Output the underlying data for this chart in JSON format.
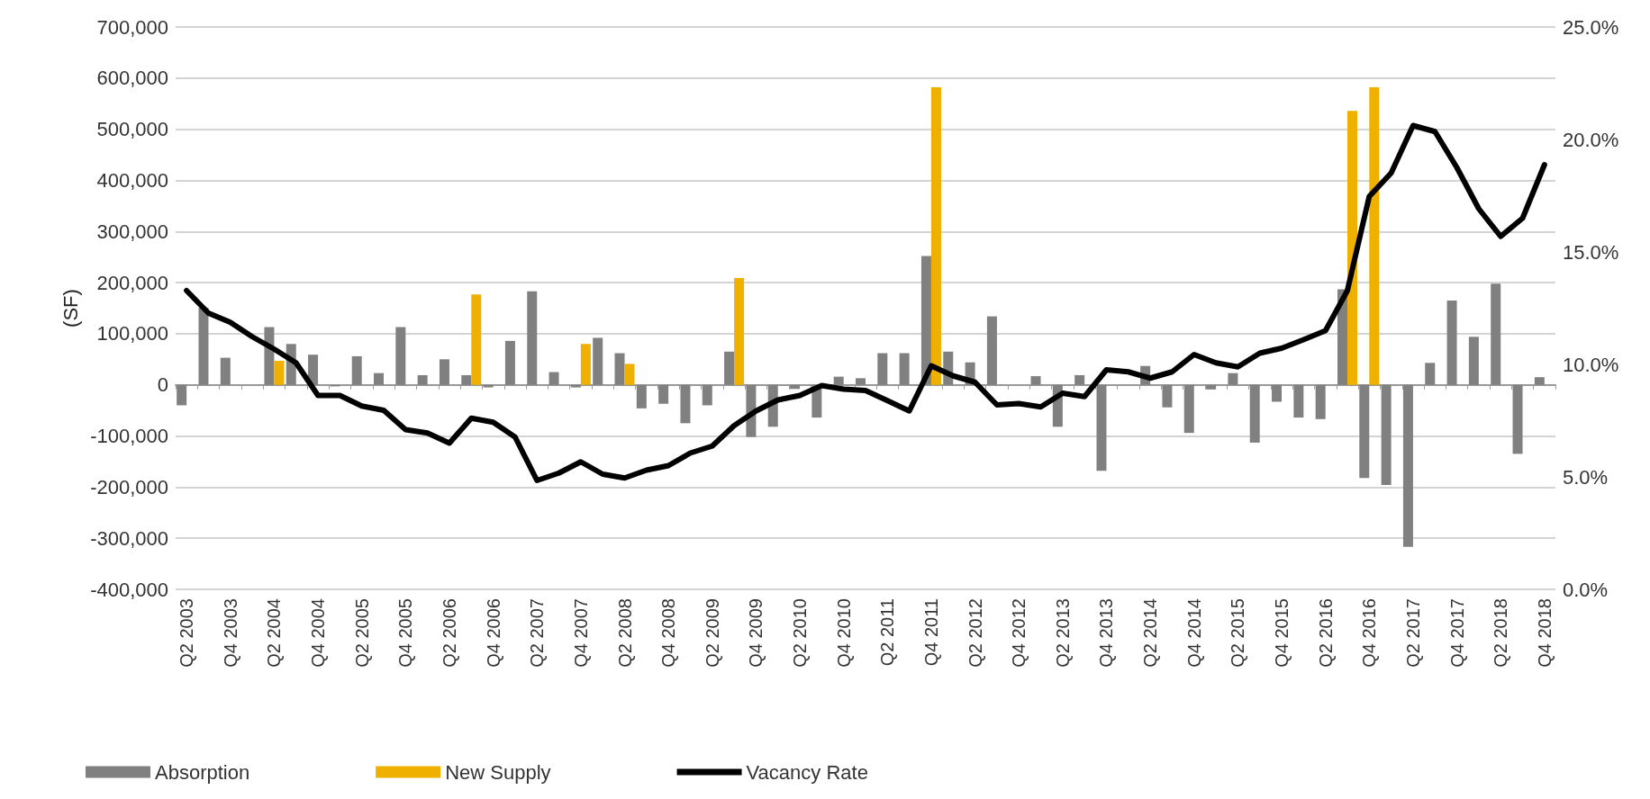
{
  "chart_data": {
    "type": "bar",
    "ylabel": "(SF)",
    "categories": [
      "Q2 2003",
      null,
      "Q4 2003",
      null,
      "Q2 2004",
      null,
      "Q4 2004",
      null,
      "Q2 2005",
      null,
      "Q4 2005",
      null,
      "Q2 2006",
      null,
      "Q4 2006",
      null,
      "Q2 2007",
      null,
      "Q4 2007",
      null,
      "Q2 2008",
      null,
      "Q4 2008",
      null,
      "Q2 2009",
      null,
      "Q4 2009",
      null,
      "Q2 2010",
      null,
      "Q4 2010",
      null,
      "Q2 2011",
      null,
      "Q4 2011",
      null,
      "Q2 2012",
      null,
      "Q4 2012",
      null,
      "Q2 2013",
      null,
      "Q4 2013",
      null,
      "Q2 2014",
      null,
      "Q4 2014",
      null,
      "Q2 2015",
      null,
      "Q4 2015",
      null,
      "Q2 2016",
      null,
      "Q4 2016",
      null,
      "Q2 2017",
      null,
      "Q4 2017",
      null,
      "Q2 2018",
      null,
      "Q4 2018"
    ],
    "series": [
      {
        "name": "Absorption",
        "color": "#808080",
        "values": [
          -40000,
          151000,
          53000,
          0,
          113000,
          80000,
          59000,
          -3000,
          56000,
          23000,
          113000,
          19000,
          50000,
          19000,
          -5000,
          86000,
          183000,
          25000,
          -5000,
          92000,
          62000,
          -46000,
          -37000,
          -75000,
          -40000,
          65000,
          -102000,
          -82000,
          -8000,
          -64000,
          16000,
          13000,
          62000,
          62000,
          252000,
          65000,
          44000,
          134000,
          0,
          17000,
          -82000,
          19000,
          -168000,
          0,
          37000,
          -44000,
          -94000,
          -9000,
          23000,
          -113000,
          -33000,
          -64000,
          -67000,
          187000,
          -182000,
          -196000,
          -317000,
          43000,
          165000,
          94000,
          198000,
          -135000,
          15000
        ]
      },
      {
        "name": "New Supply",
        "color": "#f0b000",
        "values": [
          0,
          0,
          0,
          0,
          47000,
          0,
          0,
          0,
          0,
          0,
          0,
          0,
          0,
          177000,
          0,
          0,
          0,
          0,
          80000,
          0,
          41000,
          0,
          0,
          0,
          0,
          209000,
          0,
          0,
          0,
          0,
          0,
          0,
          0,
          0,
          582000,
          0,
          0,
          0,
          0,
          0,
          0,
          0,
          0,
          0,
          0,
          0,
          0,
          0,
          0,
          0,
          0,
          0,
          0,
          536000,
          582000,
          0,
          0,
          0,
          0,
          0,
          0,
          0,
          0
        ]
      },
      {
        "name": "Vacancy Rate",
        "type": "line",
        "axis": "y2",
        "color": "#000000",
        "values": [
          13.28,
          12.28,
          11.87,
          11.23,
          10.68,
          10.07,
          8.62,
          8.62,
          8.15,
          7.96,
          7.1,
          6.95,
          6.5,
          7.61,
          7.43,
          6.77,
          4.84,
          5.17,
          5.67,
          5.12,
          4.95,
          5.3,
          5.5,
          6.06,
          6.37,
          7.28,
          7.93,
          8.42,
          8.62,
          9.06,
          8.9,
          8.84,
          8.39,
          7.93,
          9.94,
          9.49,
          9.21,
          8.2,
          8.26,
          8.11,
          8.72,
          8.57,
          9.76,
          9.67,
          9.39,
          9.67,
          10.44,
          10.07,
          9.89,
          10.5,
          10.72,
          11.1,
          11.5,
          13.28,
          17.47,
          18.51,
          20.62,
          20.35,
          18.75,
          16.92,
          15.69,
          16.5,
          18.88
        ]
      }
    ],
    "ylim": [
      -400000,
      700000
    ],
    "yticks": [
      {
        "value": -400000,
        "label": "-400,000"
      },
      {
        "value": -300000,
        "label": "-300,000"
      },
      {
        "value": -200000,
        "label": "-200,000"
      },
      {
        "value": -100000,
        "label": "-100,000"
      },
      {
        "value": 0,
        "label": "0"
      },
      {
        "value": 100000,
        "label": "100,000"
      },
      {
        "value": 200000,
        "label": "200,000"
      },
      {
        "value": 300000,
        "label": "300,000"
      },
      {
        "value": 400000,
        "label": "400,000"
      },
      {
        "value": 500000,
        "label": "500,000"
      },
      {
        "value": 600000,
        "label": "600,000"
      },
      {
        "value": 700000,
        "label": "700,000"
      }
    ],
    "y2lim": [
      0,
      25
    ],
    "y2ticks": [
      {
        "value": 0,
        "label": "0.0%"
      },
      {
        "value": 5,
        "label": "5.0%"
      },
      {
        "value": 10,
        "label": "10.0%"
      },
      {
        "value": 15,
        "label": "15.0%"
      },
      {
        "value": 20,
        "label": "20.0%"
      },
      {
        "value": 25,
        "label": "25.0%"
      }
    ],
    "grid": "y",
    "legend": "bottom",
    "marker": "none",
    "line_style": "solid"
  }
}
